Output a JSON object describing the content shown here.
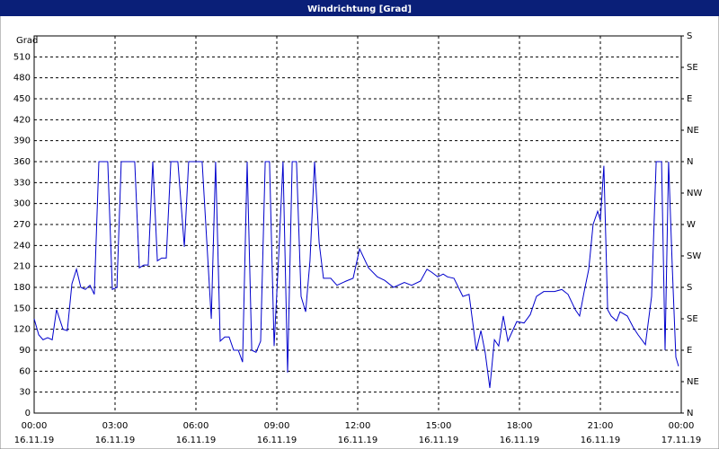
{
  "chart_data": {
    "type": "line",
    "title": "Windrichtung [Grad]",
    "y_label": "Grad",
    "x": [
      0,
      0.17,
      0.33,
      0.5,
      0.67,
      0.83,
      1.07,
      1.23,
      1.4,
      1.57,
      1.73,
      1.9,
      2.07,
      2.23,
      2.4,
      2.73,
      2.9,
      3.07,
      3.23,
      3.73,
      3.9,
      4.07,
      4.23,
      4.4,
      4.57,
      4.73,
      4.9,
      5.07,
      5.33,
      5.57,
      5.73,
      6.23,
      6.57,
      6.73,
      6.9,
      7.07,
      7.23,
      7.4,
      7.57,
      7.73,
      7.9,
      8.07,
      8.23,
      8.4,
      8.57,
      8.73,
      8.9,
      9.07,
      9.23,
      9.4,
      9.57,
      9.73,
      9.9,
      10.07,
      10.23,
      10.4,
      10.57,
      10.73,
      11,
      11.23,
      11.57,
      11.83,
      12.07,
      12.4,
      12.73,
      13,
      13.33,
      13.73,
      14,
      14.33,
      14.57,
      14.73,
      14.97,
      15.17,
      15.33,
      15.57,
      15.9,
      16.13,
      16.4,
      16.57,
      16.73,
      16.9,
      17.07,
      17.23,
      17.4,
      17.57,
      17.9,
      18.17,
      18.4,
      18.63,
      18.9,
      19.3,
      19.57,
      19.8,
      20.07,
      20.23,
      20.4,
      20.57,
      20.73,
      20.9,
      21,
      21.13,
      21.27,
      21.4,
      21.6,
      21.73,
      22,
      22.23,
      22.4,
      22.67,
      22.9,
      23.07,
      23.27,
      23.4,
      23.53,
      23.67,
      23.8,
      23.9
    ],
    "series": [
      {
        "name": "Windrichtung",
        "color": "#0000cc",
        "values": [
          135,
          112,
          105,
          108,
          105,
          148,
          120,
          118,
          185,
          206,
          180,
          177,
          183,
          170,
          360,
          360,
          177,
          180,
          360,
          360,
          208,
          212,
          212,
          360,
          218,
          222,
          222,
          360,
          360,
          238,
          360,
          360,
          135,
          360,
          103,
          109,
          109,
          90,
          90,
          73,
          360,
          90,
          87,
          103,
          360,
          360,
          96,
          225,
          360,
          58,
          360,
          360,
          167,
          145,
          218,
          360,
          244,
          193,
          193,
          183,
          189,
          193,
          235,
          208,
          195,
          190,
          180,
          187,
          183,
          189,
          206,
          202,
          195,
          199,
          195,
          193,
          167,
          170,
          90,
          118,
          86,
          36,
          105,
          96,
          139,
          103,
          131,
          129,
          141,
          167,
          174,
          174,
          177,
          170,
          148,
          139,
          174,
          206,
          270,
          289,
          276,
          354,
          148,
          139,
          132,
          145,
          139,
          122,
          112,
          98,
          167,
          360,
          360,
          90,
          360,
          206,
          80,
          67
        ]
      }
    ],
    "xlim": [
      0,
      24
    ],
    "xticks": [
      {
        "value": 0,
        "label": "00:00"
      },
      {
        "value": 3,
        "label": "03:00"
      },
      {
        "value": 6,
        "label": "06:00"
      },
      {
        "value": 9,
        "label": "09:00"
      },
      {
        "value": 12,
        "label": "12:00"
      },
      {
        "value": 15,
        "label": "15:00"
      },
      {
        "value": 18,
        "label": "18:00"
      },
      {
        "value": 21,
        "label": "21:00"
      },
      {
        "value": 24,
        "label": "00:00"
      }
    ],
    "xtick_dates": [
      "16.11.19",
      "16.11.19",
      "16.11.19",
      "16.11.19",
      "16.11.19",
      "16.11.19",
      "16.11.19",
      "16.11.19",
      "17.11.19"
    ],
    "ylim": [
      0,
      540
    ],
    "yticks": [
      0,
      30,
      60,
      90,
      120,
      150,
      180,
      210,
      240,
      270,
      300,
      330,
      360,
      390,
      420,
      450,
      480,
      510
    ],
    "y2lim": [
      0,
      540
    ],
    "y2ticks": [
      {
        "value": 0,
        "label": "N"
      },
      {
        "value": 45,
        "label": "NE"
      },
      {
        "value": 90,
        "label": "E"
      },
      {
        "value": 135,
        "label": "SE"
      },
      {
        "value": 180,
        "label": "S"
      },
      {
        "value": 225,
        "label": "SW"
      },
      {
        "value": 270,
        "label": "W"
      },
      {
        "value": 315,
        "label": "NW"
      },
      {
        "value": 360,
        "label": "N"
      },
      {
        "value": 405,
        "label": "NE"
      },
      {
        "value": 450,
        "label": "E"
      },
      {
        "value": 495,
        "label": "SE"
      },
      {
        "value": 540,
        "label": "S"
      }
    ],
    "grid": true
  }
}
